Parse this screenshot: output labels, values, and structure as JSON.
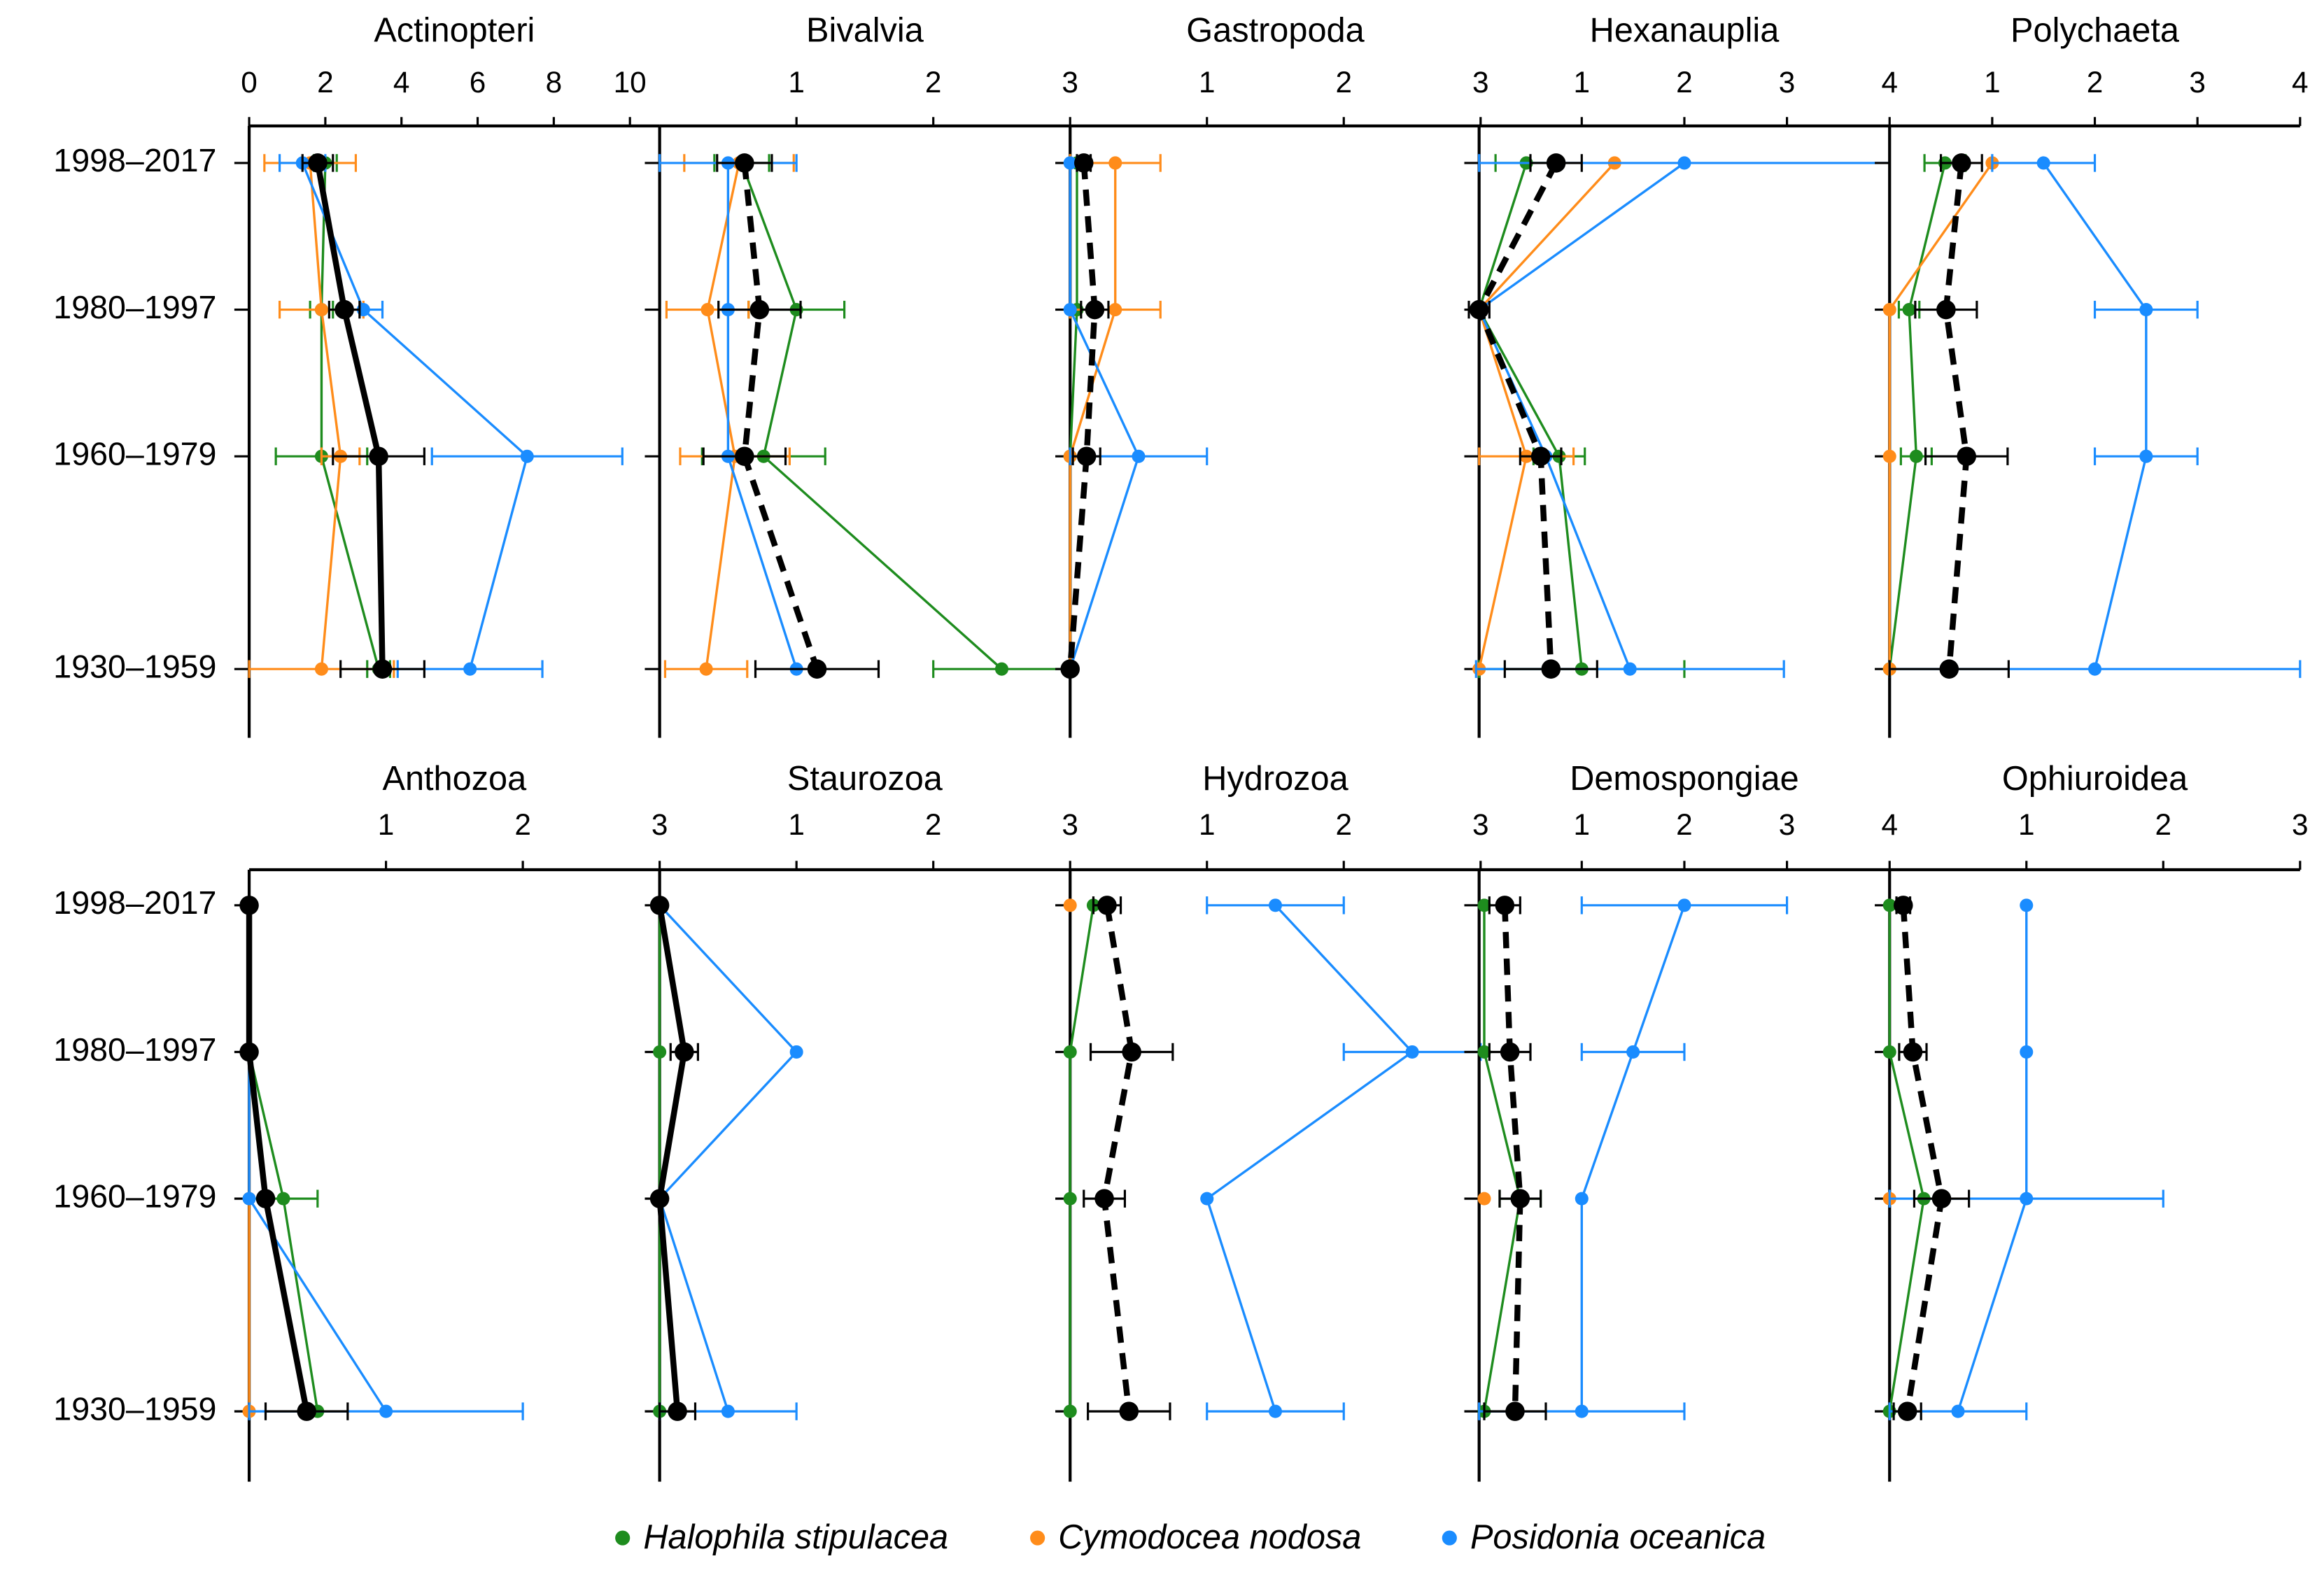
{
  "chart_data": [
    {
      "type": "line",
      "title": "Actinopteri",
      "categories": [
        "1998–2017",
        "1980–1997",
        "1960–1979",
        "1930–1959"
      ],
      "xlim": [
        0,
        10.78
      ],
      "xticks": [
        0,
        2,
        4,
        6,
        8,
        10
      ],
      "series": [
        {
          "name": "Halophila stipulacea",
          "color": "#1e8c1e",
          "values": [
            2.0,
            1.9,
            1.9,
            3.4
          ],
          "errors": [
            0.3,
            0.3,
            1.2,
            0.3
          ]
        },
        {
          "name": "Cymodocea nodosa",
          "color": "#ff8c1a",
          "values": [
            1.6,
            1.9,
            2.4,
            1.9
          ],
          "errors": [
            1.2,
            1.1,
            0.5,
            1.9
          ]
        },
        {
          "name": "Posidonia oceanica",
          "color": "#1a8cff",
          "values": [
            1.4,
            3.0,
            7.3,
            5.8
          ],
          "errors": [
            0.6,
            0.5,
            2.5,
            1.9
          ]
        }
      ],
      "mean": {
        "color": "#000000",
        "dashed": false,
        "values": [
          1.8,
          2.5,
          3.4,
          3.5
        ],
        "errors": [
          0.4,
          0.4,
          1.2,
          1.1
        ]
      }
    },
    {
      "type": "line",
      "title": "Bivalvia",
      "categories": [
        "1998–2017",
        "1980–1997",
        "1960–1979",
        "1930–1959"
      ],
      "xlim": [
        0,
        3
      ],
      "xticks": [
        1,
        2,
        3
      ],
      "series": [
        {
          "name": "Halophila stipulacea",
          "color": "#1e8c1e",
          "values": [
            0.6,
            1.0,
            0.76,
            2.5
          ],
          "errors": [
            0.2,
            0.35,
            0.45,
            0.5
          ]
        },
        {
          "name": "Cymodocea nodosa",
          "color": "#ff8c1a",
          "values": [
            0.58,
            0.35,
            0.55,
            0.34
          ],
          "errors": [
            0.4,
            0.3,
            0.4,
            0.3
          ]
        },
        {
          "name": "Posidonia oceanica",
          "color": "#1a8cff",
          "values": [
            0.5,
            0.5,
            0.5,
            1.0
          ],
          "errors": [
            0.5,
            null,
            null,
            null
          ]
        }
      ],
      "mean": {
        "color": "#000000",
        "dashed": true,
        "values": [
          0.62,
          0.73,
          0.62,
          1.15
        ],
        "errors": [
          0.2,
          0.3,
          0.3,
          0.45
        ]
      }
    },
    {
      "type": "line",
      "title": "Gastropoda",
      "categories": [
        "1998–2017",
        "1980–1997",
        "1960–1979",
        "1930–1959"
      ],
      "xlim": [
        0,
        3
      ],
      "xticks": [
        1,
        2,
        3
      ],
      "series": [
        {
          "name": "Halophila stipulacea",
          "color": "#1e8c1e",
          "values": [
            0.05,
            0.05,
            0,
            0
          ],
          "errors": [
            null,
            null,
            null,
            null
          ]
        },
        {
          "name": "Cymodocea nodosa",
          "color": "#ff8c1a",
          "values": [
            0.33,
            0.33,
            0,
            0
          ],
          "errors": [
            0.33,
            0.33,
            null,
            null
          ]
        },
        {
          "name": "Posidonia oceanica",
          "color": "#1a8cff",
          "values": [
            0,
            0,
            0.5,
            0
          ],
          "errors": [
            null,
            null,
            0.5,
            null
          ]
        }
      ],
      "mean": {
        "color": "#000000",
        "dashed": true,
        "values": [
          0.1,
          0.18,
          0.12,
          0
        ],
        "errors": [
          0.05,
          0.1,
          0.1,
          null
        ]
      }
    },
    {
      "type": "line",
      "title": "Hexanauplia",
      "categories": [
        "1998–2017",
        "1980–1997",
        "1960–1979",
        "1930–1959"
      ],
      "xlim": [
        0,
        4
      ],
      "xticks": [
        1,
        2,
        3,
        4
      ],
      "series": [
        {
          "name": "Halophila stipulacea",
          "color": "#1e8c1e",
          "values": [
            0.46,
            0,
            0.78,
            1.0
          ],
          "errors": [
            0.3,
            null,
            0.25,
            1.0
          ]
        },
        {
          "name": "Cymodocea nodosa",
          "color": "#ff8c1a",
          "values": [
            1.32,
            0,
            0.46,
            0
          ],
          "errors": [
            null,
            null,
            0.46,
            null
          ]
        },
        {
          "name": "Posidonia oceanica",
          "color": "#1a8cff",
          "values": [
            2.0,
            0,
            0.65,
            1.47
          ],
          "errors": [
            2.0,
            null,
            null,
            1.5
          ]
        }
      ],
      "mean": {
        "color": "#000000",
        "dashed": true,
        "values": [
          0.75,
          0,
          0.6,
          0.7
        ],
        "errors": [
          0.25,
          0.1,
          0.2,
          0.45
        ]
      }
    },
    {
      "type": "line",
      "title": "Polychaeta",
      "categories": [
        "1998–2017",
        "1980–1997",
        "1960–1979",
        "1930–1959"
      ],
      "xlim": [
        0,
        4
      ],
      "xticks": [
        1,
        2,
        3,
        4
      ],
      "series": [
        {
          "name": "Halophila stipulacea",
          "color": "#1e8c1e",
          "values": [
            0.54,
            0.19,
            0.26,
            0
          ],
          "errors": [
            0.2,
            0.1,
            0.15,
            null
          ]
        },
        {
          "name": "Cymodocea nodosa",
          "color": "#ff8c1a",
          "values": [
            1.0,
            0,
            0,
            0
          ],
          "errors": [
            null,
            null,
            null,
            null
          ]
        },
        {
          "name": "Posidonia oceanica",
          "color": "#1a8cff",
          "values": [
            1.5,
            2.5,
            2.5,
            2.0
          ],
          "errors": [
            0.5,
            0.5,
            0.5,
            2.0
          ]
        }
      ],
      "mean": {
        "color": "#000000",
        "dashed": true,
        "values": [
          0.7,
          0.55,
          0.75,
          0.58
        ],
        "errors": [
          0.2,
          0.3,
          0.4,
          0.58
        ]
      }
    },
    {
      "type": "line",
      "title": "Anthozoa",
      "categories": [
        "1998–2017",
        "1980–1997",
        "1960–1979",
        "1930–1959"
      ],
      "xlim": [
        0,
        3
      ],
      "xticks": [
        1,
        2,
        3
      ],
      "series": [
        {
          "name": "Halophila stipulacea",
          "color": "#1e8c1e",
          "values": [
            0,
            0,
            0.25,
            0.5
          ],
          "errors": [
            null,
            null,
            0.25,
            null
          ]
        },
        {
          "name": "Cymodocea nodosa",
          "color": "#ff8c1a",
          "values": [
            0,
            0,
            0,
            0
          ],
          "errors": [
            null,
            null,
            null,
            null
          ]
        },
        {
          "name": "Posidonia oceanica",
          "color": "#1a8cff",
          "values": [
            0,
            0,
            0,
            1.0
          ],
          "errors": [
            null,
            null,
            null,
            1.0
          ]
        }
      ],
      "mean": {
        "color": "#000000",
        "dashed": false,
        "values": [
          0,
          0,
          0.12,
          0.42
        ],
        "errors": [
          null,
          null,
          null,
          0.3
        ]
      }
    },
    {
      "type": "line",
      "title": "Staurozoa",
      "categories": [
        "1998–2017",
        "1980–1997",
        "1960–1979",
        "1930–1959"
      ],
      "xlim": [
        0,
        3
      ],
      "xticks": [
        1,
        2,
        3
      ],
      "series": [
        {
          "name": "Halophila stipulacea",
          "color": "#1e8c1e",
          "values": [
            0,
            0,
            0,
            0
          ],
          "errors": [
            null,
            null,
            null,
            null
          ]
        },
        {
          "name": "Cymodocea nodosa",
          "color": "#ff8c1a",
          "values": [
            null,
            null,
            null,
            null
          ],
          "errors": [
            null,
            null,
            null,
            null
          ]
        },
        {
          "name": "Posidonia oceanica",
          "color": "#1a8cff",
          "values": [
            0,
            1.0,
            0,
            0.5
          ],
          "errors": [
            null,
            null,
            null,
            0.5
          ]
        }
      ],
      "mean": {
        "color": "#000000",
        "dashed": false,
        "values": [
          0,
          0.18,
          0,
          0.13
        ],
        "errors": [
          null,
          0.1,
          null,
          0.13
        ]
      }
    },
    {
      "type": "line",
      "title": "Hydrozoa",
      "categories": [
        "1998–2017",
        "1980–1997",
        "1960–1979",
        "1930–1959"
      ],
      "xlim": [
        0,
        3
      ],
      "xticks": [
        1,
        2,
        3
      ],
      "series": [
        {
          "name": "Halophila stipulacea",
          "color": "#1e8c1e",
          "values": [
            0.17,
            0,
            0,
            0
          ],
          "errors": [
            null,
            null,
            null,
            null
          ]
        },
        {
          "name": "Cymodocea nodosa",
          "color": "#ff8c1a",
          "values": [
            0,
            null,
            null,
            null
          ],
          "errors": [
            null,
            null,
            null,
            null
          ]
        },
        {
          "name": "Posidonia oceanica",
          "color": "#1a8cff",
          "values": [
            1.5,
            2.5,
            1.0,
            1.5
          ],
          "errors": [
            0.5,
            0.5,
            null,
            0.5
          ]
        }
      ],
      "mean": {
        "color": "#000000",
        "dashed": true,
        "values": [
          0.27,
          0.45,
          0.25,
          0.43
        ],
        "errors": [
          0.1,
          0.3,
          0.15,
          0.3
        ]
      }
    },
    {
      "type": "line",
      "title": "Demospongiae",
      "categories": [
        "1998–2017",
        "1980–1997",
        "1960–1979",
        "1930–1959"
      ],
      "xlim": [
        0,
        4
      ],
      "xticks": [
        1,
        2,
        3,
        4
      ],
      "series": [
        {
          "name": "Halophila stipulacea",
          "color": "#1e8c1e",
          "values": [
            0.05,
            0.05,
            0.4,
            0.05
          ],
          "errors": [
            null,
            null,
            0.2,
            null
          ]
        },
        {
          "name": "Cymodocea nodosa",
          "color": "#ff8c1a",
          "values": [
            null,
            null,
            0.05,
            null
          ],
          "errors": [
            null,
            null,
            null,
            null
          ]
        },
        {
          "name": "Posidonia oceanica",
          "color": "#1a8cff",
          "values": [
            2.0,
            1.5,
            1.0,
            1.0
          ],
          "errors": [
            1.0,
            0.5,
            null,
            1.0
          ]
        }
      ],
      "mean": {
        "color": "#000000",
        "dashed": true,
        "values": [
          0.25,
          0.3,
          0.4,
          0.35
        ],
        "errors": [
          0.15,
          0.2,
          0.2,
          0.3
        ]
      }
    },
    {
      "type": "line",
      "title": "Ophiuroidea",
      "categories": [
        "1998–2017",
        "1980–1997",
        "1960–1979",
        "1930–1959"
      ],
      "xlim": [
        0,
        3
      ],
      "xticks": [
        1,
        2,
        3
      ],
      "series": [
        {
          "name": "Halophila stipulacea",
          "color": "#1e8c1e",
          "values": [
            0,
            0,
            0.25,
            0
          ],
          "errors": [
            null,
            null,
            null,
            null
          ]
        },
        {
          "name": "Cymodocea nodosa",
          "color": "#ff8c1a",
          "values": [
            null,
            null,
            0,
            null
          ],
          "errors": [
            null,
            null,
            null,
            null
          ]
        },
        {
          "name": "Posidonia oceanica",
          "color": "#1a8cff",
          "values": [
            1.0,
            1.0,
            1.0,
            0.5
          ],
          "errors": [
            null,
            null,
            1.0,
            0.5
          ]
        }
      ],
      "mean": {
        "color": "#000000",
        "dashed": true,
        "values": [
          0.1,
          0.17,
          0.38,
          0.13
        ],
        "errors": [
          0.05,
          0.1,
          0.2,
          0.1
        ]
      }
    }
  ]
}
